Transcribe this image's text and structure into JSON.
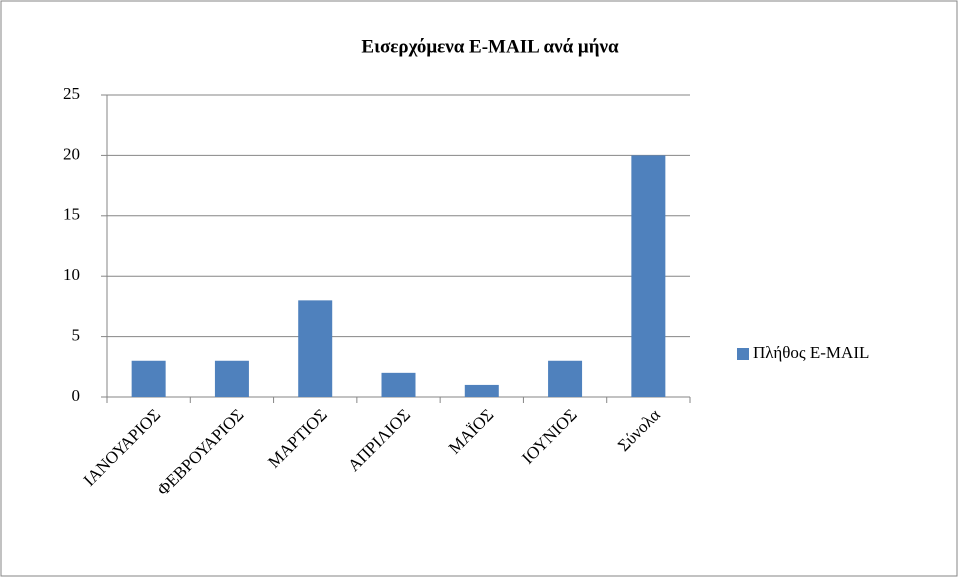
{
  "chart_data": {
    "type": "bar",
    "title": "Εισερχόμενα E-MAIL ανά μήνα",
    "categories": [
      "ΙΑΝΟΥΑΡΙΟΣ",
      "ΦΕΒΡΟΥΑΡΙΟΣ",
      "ΜΑΡΤΙΟΣ",
      "ΑΠΡΙΛΙΟΣ",
      "ΜΑΪΟΣ",
      "ΙΟΥΝΙΟΣ",
      "Σύνολα"
    ],
    "series": [
      {
        "name": "Πλήθος E-MAIL",
        "color": "#4f81bd",
        "values": [
          3,
          3,
          8,
          2,
          1,
          3,
          20
        ]
      }
    ],
    "ylim": [
      0,
      25
    ],
    "yticks": [
      0,
      5,
      10,
      15,
      20,
      25
    ],
    "grid": true,
    "legend": "right"
  }
}
